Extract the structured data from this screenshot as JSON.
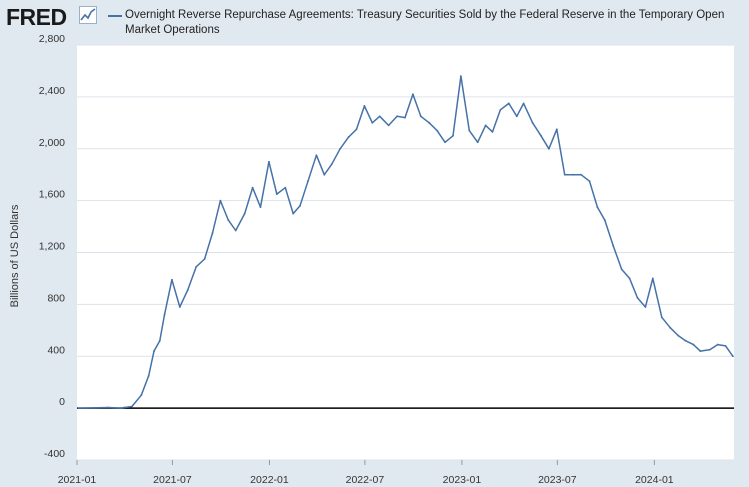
{
  "brand": {
    "logo_text": "FRED"
  },
  "colors": {
    "series": "#4572a7",
    "plot_bg": "#ffffff",
    "page_bg": "#e1e9f0",
    "grid": "#dde3ea",
    "zero_line": "#000000"
  },
  "chart_data": {
    "type": "line",
    "title": "",
    "ylabel": "Billions of US Dollars",
    "xlabel": "",
    "ylim": [
      -400,
      2800
    ],
    "yticks": [
      -400,
      0,
      400,
      800,
      1200,
      1600,
      2000,
      2400,
      2800
    ],
    "ytick_labels": [
      "-400",
      "0",
      "400",
      "800",
      "1,200",
      "1,600",
      "2,000",
      "2,400",
      "2,800"
    ],
    "xlim": [
      "2021-01-01",
      "2024-05-31"
    ],
    "xticks": [
      "2021-01-01",
      "2021-07-01",
      "2022-01-01",
      "2022-07-01",
      "2023-01-01",
      "2023-07-01",
      "2024-01-01"
    ],
    "xtick_labels": [
      "2021-01",
      "2021-07",
      "2022-01",
      "2022-07",
      "2023-01",
      "2023-07",
      "2024-01"
    ],
    "grid": true,
    "legend": "top",
    "series": [
      {
        "name": "Overnight Reverse Repurchase Agreements: Treasury Securities Sold by the Federal Reserve in the Temporary Open Market Operations",
        "x": [
          "2021-01-04",
          "2021-02-01",
          "2021-03-01",
          "2021-03-25",
          "2021-04-01",
          "2021-04-15",
          "2021-05-03",
          "2021-05-17",
          "2021-05-27",
          "2021-06-07",
          "2021-06-16",
          "2021-06-30",
          "2021-07-15",
          "2021-07-30",
          "2021-08-15",
          "2021-08-31",
          "2021-09-15",
          "2021-09-30",
          "2021-10-15",
          "2021-10-29",
          "2021-11-15",
          "2021-11-30",
          "2021-12-15",
          "2021-12-31",
          "2022-01-15",
          "2022-01-31",
          "2022-02-15",
          "2022-02-28",
          "2022-03-15",
          "2022-03-31",
          "2022-04-15",
          "2022-04-29",
          "2022-05-15",
          "2022-05-31",
          "2022-06-15",
          "2022-06-30",
          "2022-07-15",
          "2022-07-29",
          "2022-08-15",
          "2022-08-31",
          "2022-09-15",
          "2022-09-30",
          "2022-10-15",
          "2022-10-31",
          "2022-11-15",
          "2022-11-30",
          "2022-12-15",
          "2022-12-30",
          "2023-01-15",
          "2023-01-31",
          "2023-02-15",
          "2023-02-28",
          "2023-03-15",
          "2023-03-31",
          "2023-04-15",
          "2023-04-28",
          "2023-05-15",
          "2023-05-31",
          "2023-06-15",
          "2023-06-30",
          "2023-07-15",
          "2023-07-31",
          "2023-08-15",
          "2023-08-31",
          "2023-09-15",
          "2023-09-29",
          "2023-10-15",
          "2023-10-31",
          "2023-11-15",
          "2023-11-30",
          "2023-12-15",
          "2023-12-29",
          "2024-01-15",
          "2024-01-31",
          "2024-02-15",
          "2024-02-29",
          "2024-03-15",
          "2024-03-28",
          "2024-04-15",
          "2024-04-30",
          "2024-05-15",
          "2024-05-29"
        ],
        "y": [
          0,
          2,
          5,
          0,
          5,
          12,
          100,
          250,
          440,
          520,
          720,
          990,
          780,
          910,
          1090,
          1150,
          1350,
          1600,
          1450,
          1370,
          1500,
          1700,
          1550,
          1900,
          1650,
          1700,
          1500,
          1560,
          1750,
          1950,
          1800,
          1880,
          2000,
          2090,
          2150,
          2330,
          2200,
          2250,
          2180,
          2250,
          2240,
          2420,
          2250,
          2200,
          2140,
          2050,
          2100,
          2560,
          2140,
          2050,
          2180,
          2130,
          2300,
          2350,
          2250,
          2350,
          2200,
          2100,
          2000,
          2150,
          1800,
          1800,
          1800,
          1750,
          1550,
          1450,
          1250,
          1070,
          1000,
          850,
          780,
          1000,
          700,
          620,
          560,
          520,
          490,
          440,
          450,
          490,
          480,
          400
        ]
      }
    ]
  }
}
